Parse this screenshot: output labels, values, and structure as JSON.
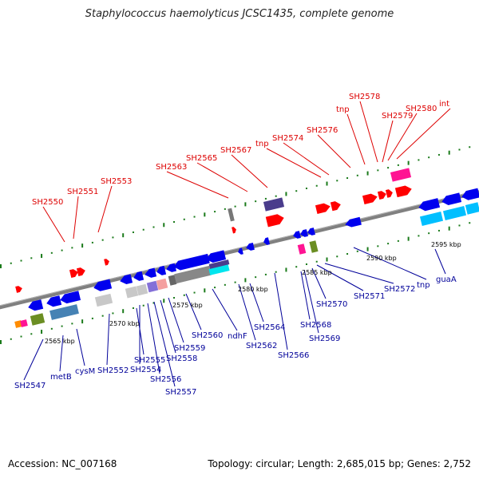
{
  "title": "Staphylococcus haemolyticus JCSC1435, complete genome",
  "footer": {
    "accession": "Accession: NC_007168",
    "summary": "Topology: circular; Length: 2,685,015 bp; Genes: 2,752"
  },
  "colors": {
    "forward_label": "#dd0000",
    "reverse_label": "#000099",
    "forward_gene": "#ff0000",
    "reverse_gene": "#0000ee",
    "backbone": "#808080",
    "tick": "#1a7a1a"
  },
  "scale_ticks": [
    "2565 kbp",
    "2570 kbp",
    "2575 kbp",
    "2580 kbp",
    "2585 kbp",
    "2590 kbp",
    "2595 kbp"
  ],
  "forward_labels": [
    "SH2550",
    "SH2551",
    "SH2553",
    "SH2563",
    "SH2565",
    "SH2567",
    "tnp",
    "SH2574",
    "SH2576",
    "tnp",
    "SH2578",
    "SH2579",
    "SH2580",
    "int"
  ],
  "reverse_labels": [
    "SH2547",
    "metB",
    "cysM",
    "SH2552",
    "SH2555",
    "SH2554",
    "SH2556",
    "SH2557",
    "SH2558",
    "SH2559",
    "SH2560",
    "ndhF",
    "SH2562",
    "SH2564",
    "SH2566",
    "SH2568",
    "SH2569",
    "SH2570",
    "SH2571",
    "SH2572",
    "tnp",
    "guaA"
  ]
}
